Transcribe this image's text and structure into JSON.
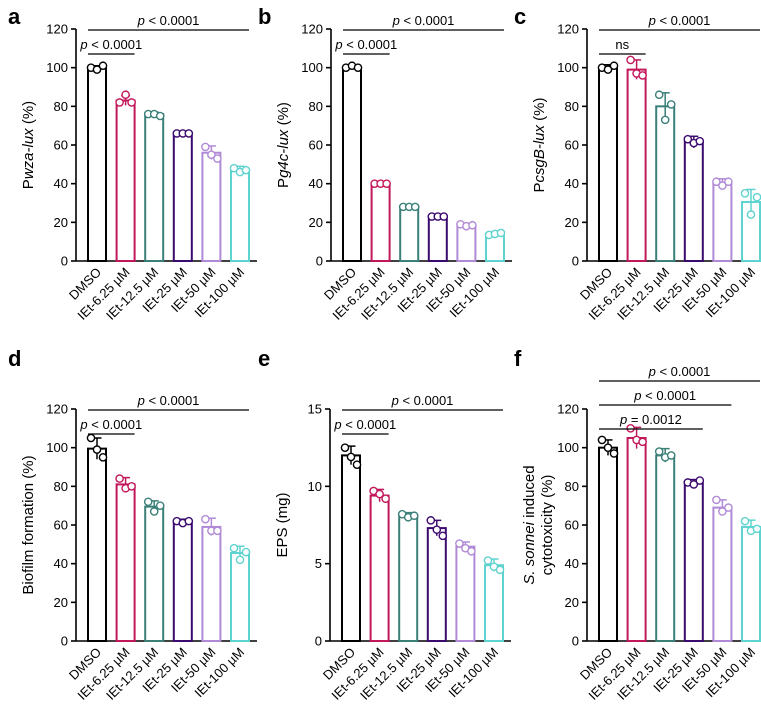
{
  "colors": {
    "DMSO": "#000000",
    "IEt-6.25 µM": "#c2185b",
    "IEt-12.5 µM": "#3a7f78",
    "IEt-25 µM": "#3b0a6e",
    "IEt-50 µM": "#b08ad6",
    "IEt-100 µM": "#5fd3cf"
  },
  "chart_data": [
    {
      "type": "bar",
      "panel": "a",
      "ylabel": "Pwza-lux (%)",
      "ylabel_parts": [
        {
          "t": "P",
          "i": false
        },
        {
          "t": "wza-lux",
          "i": true
        },
        {
          "t": " (%)",
          "i": false
        }
      ],
      "ylim": [
        0,
        120
      ],
      "yticks": [
        0,
        20,
        40,
        60,
        80,
        100,
        120
      ],
      "categories": [
        "DMSO",
        "IEt-6.25 µM",
        "IEt-12.5 µM",
        "IEt-25 µM",
        "IEt-50 µM",
        "IEt-100 µM"
      ],
      "values": [
        100,
        83,
        76,
        66,
        56,
        47
      ],
      "errors": [
        1,
        2.5,
        1,
        0.5,
        3.5,
        2
      ],
      "points": [
        [
          100,
          99,
          101
        ],
        [
          82,
          86,
          82
        ],
        [
          76,
          76,
          75
        ],
        [
          66,
          66,
          66
        ],
        [
          59,
          55,
          53
        ],
        [
          48,
          46,
          47
        ]
      ],
      "significance": [
        {
          "from": 0,
          "to": 1,
          "label": "p < 0.0001",
          "level": 0
        },
        {
          "from": 0,
          "to": 5,
          "label": "p < 0.0001",
          "level": 1
        }
      ]
    },
    {
      "type": "bar",
      "panel": "b",
      "ylabel": "Pg4c-lux (%)",
      "ylabel_parts": [
        {
          "t": "P",
          "i": false
        },
        {
          "t": "g4c-lux",
          "i": true
        },
        {
          "t": " (%)",
          "i": false
        }
      ],
      "ylim": [
        0,
        120
      ],
      "yticks": [
        0,
        20,
        40,
        60,
        80,
        100,
        120
      ],
      "categories": [
        "DMSO",
        "IEt-6.25 µM",
        "IEt-12.5 µM",
        "IEt-25 µM",
        "IEt-50 µM",
        "IEt-100 µM"
      ],
      "values": [
        100,
        40,
        28,
        23,
        18.5,
        14
      ],
      "errors": [
        0.8,
        0.5,
        0.4,
        0.3,
        1,
        1
      ],
      "points": [
        [
          100,
          101,
          100
        ],
        [
          40,
          40,
          40
        ],
        [
          28,
          28,
          28
        ],
        [
          23,
          23,
          23
        ],
        [
          19,
          18,
          18.5
        ],
        [
          13.5,
          14,
          14.5
        ]
      ],
      "significance": [
        {
          "from": 0,
          "to": 1,
          "label": "p < 0.0001",
          "level": 0
        },
        {
          "from": 0,
          "to": 5,
          "label": "p < 0.0001",
          "level": 1
        }
      ]
    },
    {
      "type": "bar",
      "panel": "c",
      "ylabel": "PcsgB-lux (%)",
      "ylabel_parts": [
        {
          "t": "P",
          "i": false
        },
        {
          "t": "csgB-lux",
          "i": true
        },
        {
          "t": " (%)",
          "i": false
        }
      ],
      "ylim": [
        0,
        120
      ],
      "yticks": [
        0,
        20,
        40,
        60,
        80,
        100,
        120
      ],
      "categories": [
        "DMSO",
        "IEt-6.25 µM",
        "IEt-12.5 µM",
        "IEt-25 µM",
        "IEt-50 µM",
        "IEt-100 µM"
      ],
      "values": [
        100,
        99,
        80,
        61.5,
        40.5,
        30.5
      ],
      "errors": [
        1.5,
        5,
        7,
        3,
        2,
        6.5
      ],
      "points": [
        [
          100,
          99,
          101
        ],
        [
          104,
          97,
          96
        ],
        [
          86,
          73,
          81
        ],
        [
          63,
          61,
          62
        ],
        [
          41,
          39,
          41
        ],
        [
          35,
          24,
          33
        ]
      ],
      "significance": [
        {
          "from": 0,
          "to": 1,
          "label": "ns",
          "level": 0
        },
        {
          "from": 0,
          "to": 5,
          "label": "p < 0.0001",
          "level": 1
        }
      ]
    },
    {
      "type": "bar",
      "panel": "d",
      "ylabel": "Biofilm formation (%)",
      "ylabel_parts": [
        {
          "t": "Biofilm formation (%)",
          "i": false
        }
      ],
      "ylim": [
        0,
        120
      ],
      "yticks": [
        0,
        20,
        40,
        60,
        80,
        100,
        120
      ],
      "categories": [
        "DMSO",
        "IEt-6.25 µM",
        "IEt-12.5 µM",
        "IEt-25 µM",
        "IEt-50 µM",
        "IEt-100 µM"
      ],
      "values": [
        99.5,
        81,
        69.5,
        61.5,
        59,
        45.5
      ],
      "errors": [
        5.5,
        3.5,
        3,
        1.5,
        4.5,
        3.5
      ],
      "points": [
        [
          105,
          99,
          95
        ],
        [
          84,
          79,
          80
        ],
        [
          72,
          67,
          70
        ],
        [
          62,
          61,
          62
        ],
        [
          63,
          57,
          57
        ],
        [
          48,
          42,
          46
        ]
      ],
      "significance": [
        {
          "from": 0,
          "to": 1,
          "label": "p < 0.0001",
          "level": 0
        },
        {
          "from": 0,
          "to": 5,
          "label": "p < 0.0001",
          "level": 1
        }
      ]
    },
    {
      "type": "bar",
      "panel": "e",
      "ylabel": "EPS (mg)",
      "ylabel_parts": [
        {
          "t": "EPS (mg)",
          "i": false
        }
      ],
      "ylim": [
        0,
        15
      ],
      "yticks": [
        0,
        5,
        10,
        15
      ],
      "categories": [
        "DMSO",
        "IEt-6.25 µM",
        "IEt-12.5 µM",
        "IEt-25 µM",
        "IEt-50 µM",
        "IEt-100 µM"
      ],
      "values": [
        12,
        9.4,
        8.1,
        7.3,
        6.1,
        4.9
      ],
      "errors": [
        0.6,
        0.4,
        0.2,
        0.5,
        0.3,
        0.4
      ],
      "points": [
        [
          12.5,
          11.9,
          11.4
        ],
        [
          9.7,
          9.5,
          9.2
        ],
        [
          8.2,
          8.0,
          8.1
        ],
        [
          7.8,
          7.2,
          6.8
        ],
        [
          6.3,
          6.0,
          5.8
        ],
        [
          5.2,
          4.8,
          4.6
        ]
      ],
      "significance": [
        {
          "from": 0,
          "to": 1,
          "label": "p < 0.0001",
          "level": 0
        },
        {
          "from": 0,
          "to": 5,
          "label": "p < 0.0001",
          "level": 1
        }
      ]
    },
    {
      "type": "bar",
      "panel": "f",
      "ylabel": "S. sonnei induced cytotoxicity (%)",
      "ylabel_parts": [
        {
          "t": "S. sonnei",
          "i": true
        },
        {
          "t": " induced",
          "i": false
        }
      ],
      "ylabel_line2": "cytotoxicity (%)",
      "ylim": [
        0,
        120
      ],
      "yticks": [
        0,
        20,
        40,
        60,
        80,
        100,
        120
      ],
      "categories": [
        "DMSO",
        "IEt-6.25 µM",
        "IEt-12.5 µM",
        "IEt-25 µM",
        "IEt-50 µM",
        "IEt-100 µM"
      ],
      "values": [
        100,
        105,
        96,
        82,
        69,
        59
      ],
      "errors": [
        4,
        5.5,
        3.5,
        1.5,
        4,
        3.5
      ],
      "points": [
        [
          104,
          100,
          97
        ],
        [
          110,
          104,
          103
        ],
        [
          98,
          95,
          96
        ],
        [
          82,
          81,
          83
        ],
        [
          73,
          67,
          69
        ],
        [
          62,
          57,
          58
        ]
      ],
      "significance": [
        {
          "from": 0,
          "to": 3,
          "label": "p = 0.0012",
          "level": 0
        },
        {
          "from": 0,
          "to": 4,
          "label": "p < 0.0001",
          "level": 1
        },
        {
          "from": 0,
          "to": 5,
          "label": "p < 0.0001",
          "level": 2
        }
      ]
    }
  ]
}
